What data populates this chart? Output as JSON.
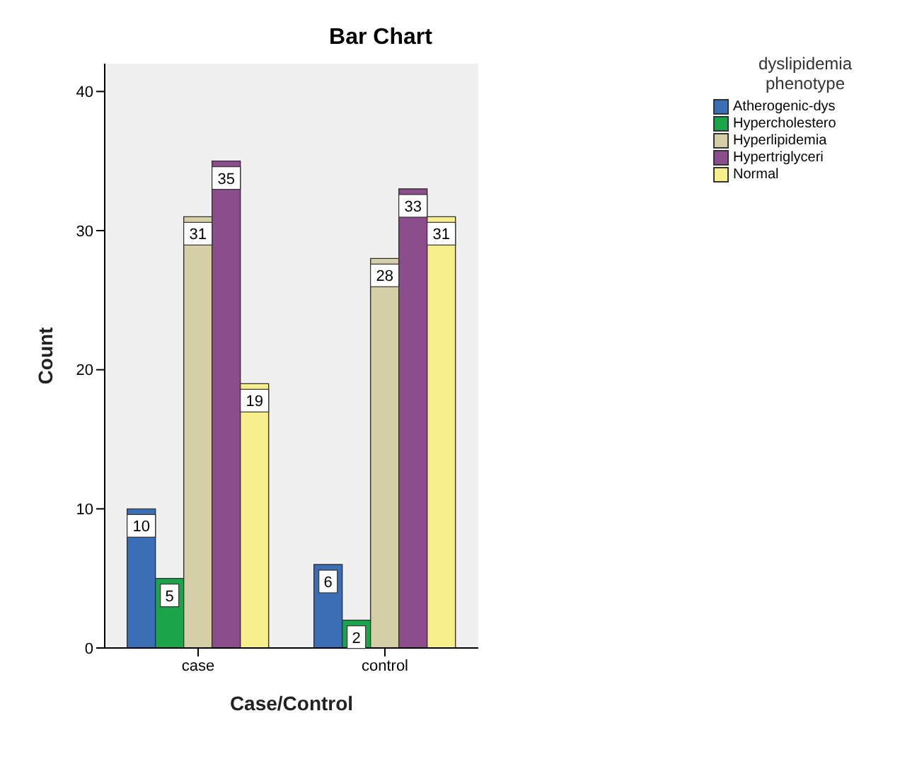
{
  "chart_data": {
    "type": "bar",
    "title": "Bar Chart",
    "xlabel": "Case/Control",
    "ylabel": "Count",
    "legend_title": "dyslipidemia phenotype",
    "categories": [
      "case",
      "control"
    ],
    "series": [
      {
        "name": "Atherogenic-dys",
        "color": "#3a6fb5",
        "values": [
          10,
          6
        ]
      },
      {
        "name": "Hypercholestero",
        "color": "#1aa54b",
        "values": [
          5,
          2
        ]
      },
      {
        "name": "Hyperlipidemia",
        "color": "#d5cfa8",
        "values": [
          31,
          28
        ]
      },
      {
        "name": "Hypertriglyceri",
        "color": "#8c4d8c",
        "values": [
          35,
          33
        ]
      },
      {
        "name": "Normal",
        "color": "#f7ef8c",
        "values": [
          19,
          31
        ]
      }
    ],
    "ylim": [
      0,
      42
    ],
    "yticks": [
      0,
      10,
      20,
      30,
      40
    ],
    "grid": false,
    "legend": "top right",
    "data_labels": true
  }
}
